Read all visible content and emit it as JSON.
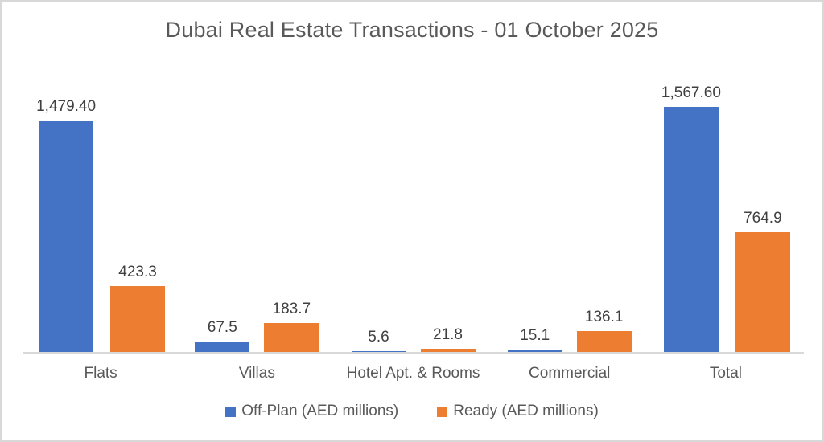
{
  "chart_data": {
    "type": "bar",
    "title": "Dubai Real Estate Transactions - 01 October 2025",
    "categories": [
      "Flats",
      "Villas",
      "Hotel Apt. & Rooms",
      "Commercial",
      "Total"
    ],
    "series": [
      {
        "name": "Off-Plan (AED millions)",
        "color": "#4472C4",
        "values": [
          1479.4,
          67.5,
          5.6,
          15.1,
          1567.6
        ],
        "labels": [
          "1,479.40",
          "67.5",
          "5.6",
          "15.1",
          "1,567.60"
        ]
      },
      {
        "name": "Ready (AED millions)",
        "color": "#ED7D31",
        "values": [
          423.3,
          183.7,
          21.8,
          136.1,
          764.9
        ],
        "labels": [
          "423.3",
          "183.7",
          "21.8",
          "136.1",
          "764.9"
        ]
      }
    ],
    "xlabel": "",
    "ylabel": "",
    "ylim": [
      0,
      1567.6
    ],
    "grid": false,
    "y_axis_visible": false,
    "legend_position": "bottom",
    "data_labels": "outside-end"
  },
  "colors": {
    "title_text": "#595959",
    "data_label_text": "#404040",
    "axis_label_text": "#595959",
    "axis_line": "#d9d9d9",
    "series_blue": "#4472C4",
    "series_orange": "#ED7D31",
    "page_border": "#d8d8d8",
    "background": "#ffffff"
  }
}
